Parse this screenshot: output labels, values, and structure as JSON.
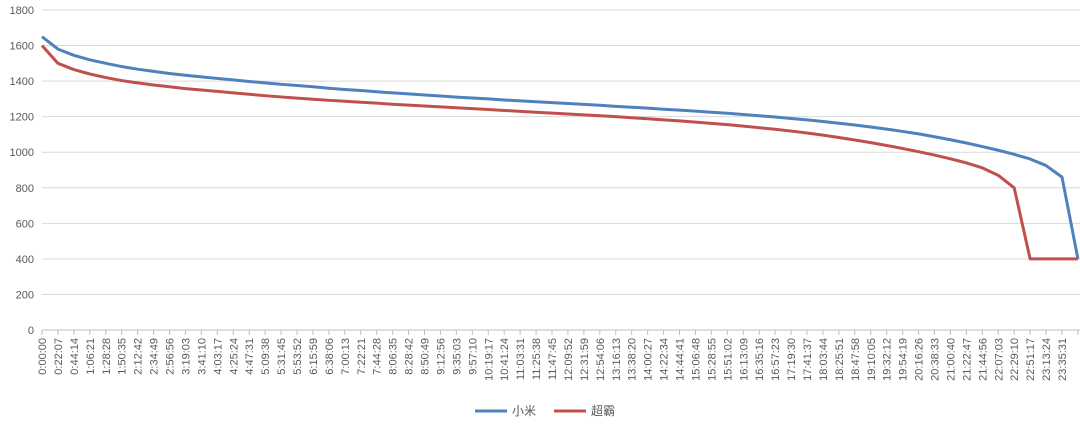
{
  "chart_data": {
    "type": "line",
    "categories": [
      "0:00:00",
      "0:22:07",
      "0:44:14",
      "1:06:21",
      "1:28:28",
      "1:50:35",
      "2:12:42",
      "2:34:49",
      "2:56:56",
      "3:19:03",
      "3:41:10",
      "4:03:17",
      "4:25:24",
      "4:47:31",
      "5:09:38",
      "5:31:45",
      "5:53:52",
      "6:15:59",
      "6:38:06",
      "7:00:13",
      "7:22:21",
      "7:44:28",
      "8:06:35",
      "8:28:42",
      "8:50:49",
      "9:12:56",
      "9:35:03",
      "9:57:10",
      "10:19:17",
      "10:41:24",
      "11:03:31",
      "11:25:38",
      "11:47:45",
      "12:09:52",
      "12:31:59",
      "12:54:06",
      "13:16:13",
      "13:38:20",
      "14:00:27",
      "14:22:34",
      "14:44:41",
      "15:06:48",
      "15:28:55",
      "15:51:02",
      "16:13:09",
      "16:35:16",
      "16:57:23",
      "17:19:30",
      "17:41:37",
      "18:03:44",
      "18:25:51",
      "18:47:58",
      "19:10:05",
      "19:32:12",
      "19:54:19",
      "20:16:26",
      "20:38:33",
      "21:00:40",
      "21:22:47",
      "21:44:56",
      "22:07:03",
      "22:29:10",
      "22:51:17",
      "23:13:24",
      "23:35:31",
      null
    ],
    "series": [
      {
        "name": "小米",
        "color": "#4f81bd",
        "values": [
          1650,
          1580,
          1545,
          1520,
          1500,
          1482,
          1467,
          1455,
          1443,
          1433,
          1424,
          1415,
          1407,
          1398,
          1390,
          1382,
          1375,
          1368,
          1360,
          1353,
          1347,
          1340,
          1334,
          1328,
          1322,
          1316,
          1310,
          1305,
          1300,
          1294,
          1289,
          1284,
          1279,
          1274,
          1269,
          1264,
          1258,
          1253,
          1248,
          1242,
          1237,
          1231,
          1225,
          1219,
          1212,
          1205,
          1198,
          1190,
          1182,
          1173,
          1163,
          1153,
          1142,
          1130,
          1117,
          1103,
          1087,
          1070,
          1052,
          1032,
          1011,
          988,
          962,
          925,
          860,
          400
        ]
      },
      {
        "name": "超霸",
        "color": "#c0504d",
        "values": [
          1600,
          1500,
          1465,
          1440,
          1420,
          1403,
          1390,
          1378,
          1368,
          1358,
          1350,
          1342,
          1334,
          1326,
          1318,
          1311,
          1304,
          1298,
          1292,
          1287,
          1281,
          1276,
          1270,
          1265,
          1260,
          1255,
          1250,
          1245,
          1240,
          1235,
          1230,
          1225,
          1220,
          1215,
          1210,
          1205,
          1200,
          1194,
          1188,
          1182,
          1176,
          1169,
          1162,
          1155,
          1147,
          1138,
          1129,
          1119,
          1108,
          1096,
          1083,
          1069,
          1054,
          1038,
          1021,
          1003,
          984,
          963,
          940,
          912,
          870,
          800,
          400,
          400,
          400,
          400
        ]
      }
    ],
    "ylim": [
      0,
      1800
    ],
    "yticks": [
      0,
      200,
      400,
      600,
      800,
      1000,
      1200,
      1400,
      1600,
      1800
    ],
    "grid": true,
    "legend": "bottom"
  }
}
